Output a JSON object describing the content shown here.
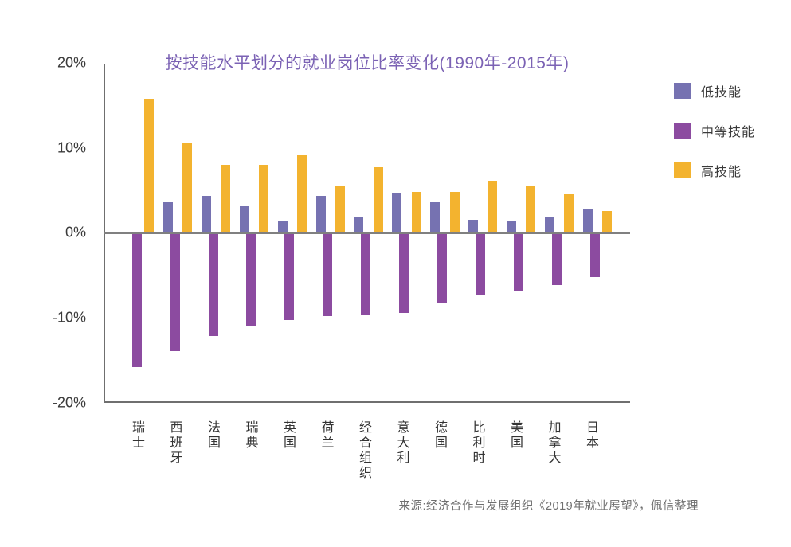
{
  "title": "按技能水平划分的就业岗位比率变化(1990年-2015年)",
  "source": "来源:经济合作与发展组织《2019年就业展望》，佩信整理",
  "colors": {
    "title": "#7B62B4",
    "low_skill": "#7672B1",
    "medium_skill": "#8C4BA0",
    "high_skill": "#F3B32F",
    "axis": "#6F6F6F",
    "zero_line": "#808080",
    "tick_text": "#3A3A3A",
    "source_text": "#6F6F6F"
  },
  "legend": {
    "position": "right-top",
    "items": [
      {
        "label": "低技能",
        "color": "#7672B1"
      },
      {
        "label": "中等技能",
        "color": "#8C4BA0"
      },
      {
        "label": "高技能",
        "color": "#F3B32F"
      }
    ]
  },
  "y_axis": {
    "tick_labels": [
      "20%",
      "10%",
      "0%",
      "-10%",
      "-20%"
    ],
    "tick_values": [
      20,
      10,
      0,
      -10,
      -20
    ]
  },
  "chart_data": {
    "type": "bar",
    "title": "按技能水平划分的就业岗位比率变化(1990年-2015年)",
    "categories": [
      "瑞士",
      "西班牙",
      "法国",
      "瑞典",
      "英国",
      "荷兰",
      "经合组织",
      "意大利",
      "德国",
      "比利时",
      "美国",
      "加拿大",
      "日本"
    ],
    "series": [
      {
        "name": "低技能",
        "color": "#7672B1",
        "values": [
          0,
          3.6,
          4.3,
          3.1,
          1.3,
          4.3,
          1.9,
          4.6,
          3.6,
          1.5,
          1.3,
          1.9,
          2.7
        ]
      },
      {
        "name": "中等技能",
        "color": "#8C4BA0",
        "values": [
          -15.8,
          -13.9,
          -12.2,
          -11.0,
          -10.3,
          -9.8,
          -9.6,
          -9.4,
          -8.3,
          -7.4,
          -6.8,
          -6.2,
          -5.2
        ]
      },
      {
        "name": "高技能",
        "color": "#F3B32F",
        "values": [
          15.8,
          10.5,
          8.0,
          8.0,
          9.1,
          5.6,
          7.7,
          4.8,
          4.8,
          6.1,
          5.5,
          4.5,
          2.6
        ]
      }
    ],
    "xlabel": "",
    "ylabel": "",
    "ylim": [
      -20,
      20
    ],
    "ytick_step": 10,
    "grid": false,
    "legend_position": "right-top"
  }
}
